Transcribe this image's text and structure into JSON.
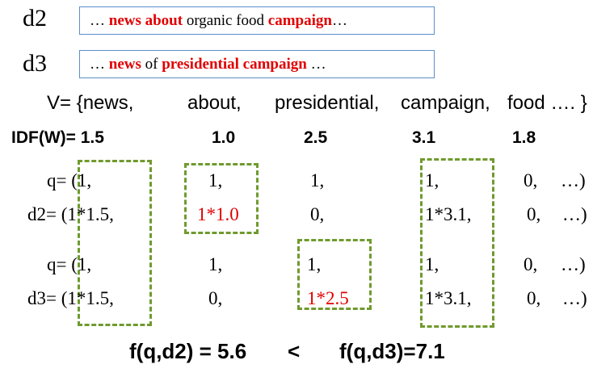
{
  "documents": {
    "d2": {
      "label": "d2",
      "prefix": "… ",
      "w1": "news about",
      "mid": " organic food ",
      "w2": "campaign",
      "suffix": "…"
    },
    "d3": {
      "label": "d3",
      "prefix": "… ",
      "w1": "news",
      "mid": " of ",
      "w2": "presidential campaign",
      "suffix": " …"
    }
  },
  "vocabulary": {
    "lead": "V= {news,",
    "t2": "about,",
    "t3": "presidential,",
    "t4": "campaign,",
    "t5": "food …. }"
  },
  "idf": {
    "label": "IDF(W)= 1.5",
    "v2": "1.0",
    "v3": "2.5",
    "v4": "3.1",
    "v5": "1.8"
  },
  "vectors": {
    "q_a": {
      "head": "q= (1,",
      "c2": "1,",
      "c3": "1,",
      "c4": "1,",
      "c5": "0,",
      "c6": "…)"
    },
    "d2": {
      "head": "d2= (1*1.5,",
      "c2": "1*1.0",
      "c3": "0,",
      "c4": "1*3.1,",
      "c5": "0,",
      "c6": "…)"
    },
    "q_b": {
      "head": "q= (1,",
      "c2": "1,",
      "c3": "1,",
      "c4": "1,",
      "c5": "0,",
      "c6": "…)"
    },
    "d3": {
      "head": "d3= (1*1.5,",
      "c2": "0,",
      "c3": "1*2.5",
      "c4": "1*3.1,",
      "c5": "0,",
      "c6": "…)"
    }
  },
  "result": {
    "left": "f(q,d2) = 5.6",
    "op": "<",
    "right": "f(q,d3)=7.1"
  },
  "colors": {
    "highlight_text": "#e00000",
    "box_border": "#5b8fc9",
    "dashed_box": "#6f9a2e"
  }
}
